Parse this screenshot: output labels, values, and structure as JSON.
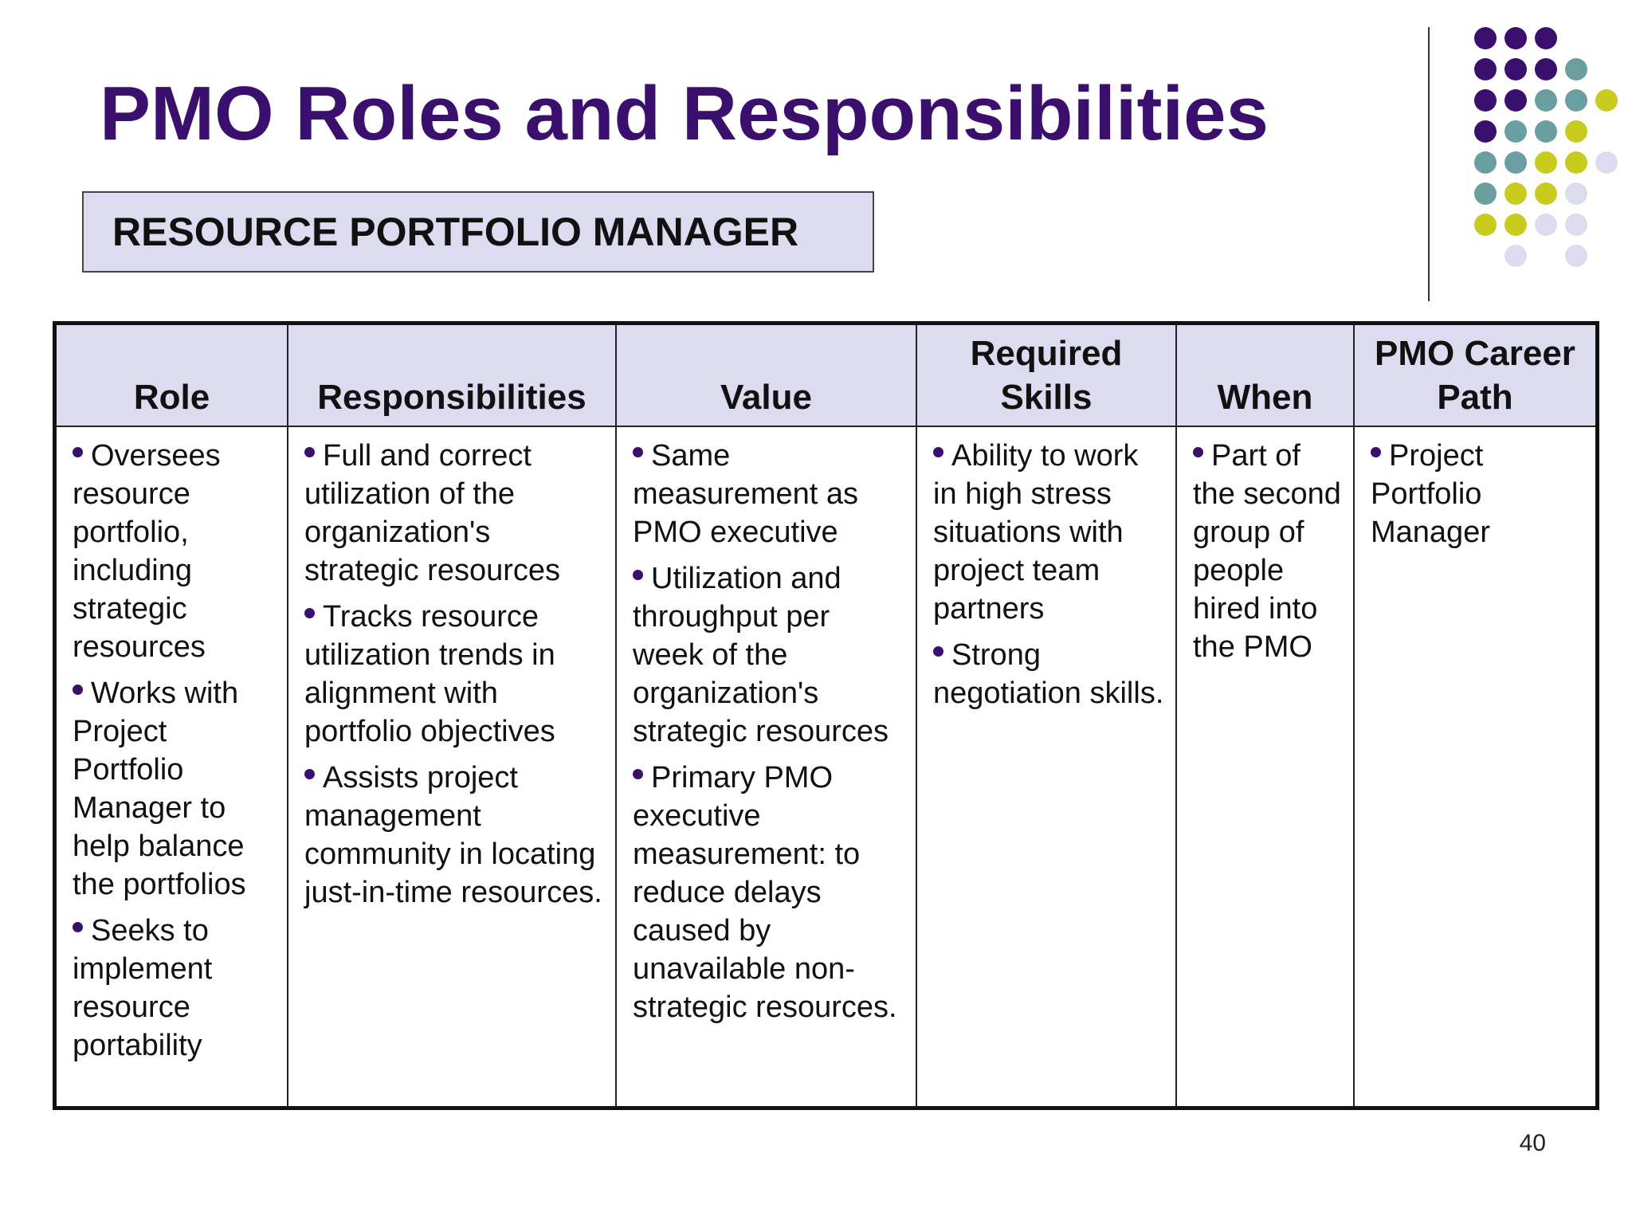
{
  "slide": {
    "title": "PMO Roles and Responsibilities",
    "subtitle": "RESOURCE PORTFOLIO MANAGER",
    "page_number": "40"
  },
  "colors": {
    "title": "#3b0f6e",
    "header_fill": "#dcdbf0",
    "dot_purple": "#3b0f6e",
    "dot_teal": "#6a9ea0",
    "dot_olive": "#c9cc1f",
    "dot_lavender": "#dcdbf0"
  },
  "decoration": {
    "dot_rows": [
      [
        "purple",
        "purple",
        "purple"
      ],
      [
        "purple",
        "purple",
        "purple",
        "teal"
      ],
      [
        "purple",
        "purple",
        "teal",
        "teal",
        "olive"
      ],
      [
        "purple",
        "teal",
        "teal",
        "olive"
      ],
      [
        "teal",
        "teal",
        "olive",
        "olive",
        "lavender"
      ],
      [
        "teal",
        "olive",
        "olive",
        "lavender"
      ],
      [
        "olive",
        "olive",
        "lavender",
        "lavender"
      ],
      [
        "lavender",
        "lavender"
      ]
    ]
  },
  "table": {
    "headers": {
      "role": "Role",
      "responsibilities": "Responsibilities",
      "value": "Value",
      "skills_line1": "Required",
      "skills_line2": "Skills",
      "when": "When",
      "career_line1": "PMO Career",
      "career_line2": "Path"
    },
    "role": [
      "Oversees resource portfolio, including strategic resources",
      "Works with Project Portfolio Manager to help balance the portfolios",
      "Seeks to implement resource portability"
    ],
    "responsibilities": [
      "Full and correct utilization of the organization's strategic resources",
      "Tracks resource utilization trends in alignment with portfolio objectives",
      "Assists project management community in locating just-in-time resources."
    ],
    "value": [
      "Same measurement as PMO executive",
      "Utilization and throughput per week of the organization's strategic resources",
      "Primary PMO executive measurement: to reduce delays caused by unavailable non-strategic resources."
    ],
    "skills": [
      "Ability to work in high stress situations with project team partners",
      "Strong negotiation skills."
    ],
    "when": [
      "Part of the second group of people hired into the PMO"
    ],
    "career": [
      "Project Portfolio Manager"
    ]
  }
}
